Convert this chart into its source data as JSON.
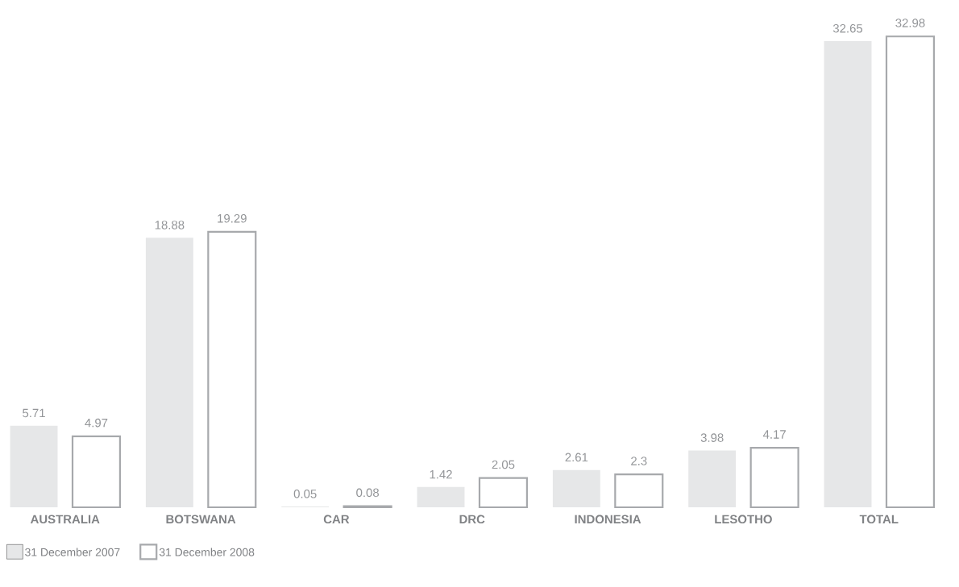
{
  "chart_data": {
    "type": "bar",
    "categories": [
      "AUSTRALIA",
      "BOTSWANA",
      "CAR",
      "DRC",
      "INDONESIA",
      "LESOTHO",
      "TOTAL"
    ],
    "series": [
      {
        "name": "31 December 2007",
        "color": "#e6e7e8",
        "values": [
          5.71,
          18.88,
          0.05,
          1.42,
          2.61,
          3.98,
          32.65
        ]
      },
      {
        "name": "31 December 2008",
        "color": "#a7a9ac",
        "values": [
          4.97,
          19.29,
          0.08,
          2.05,
          2.3,
          4.17,
          32.98
        ]
      }
    ],
    "data_labels": true,
    "legend": "bottom left"
  }
}
